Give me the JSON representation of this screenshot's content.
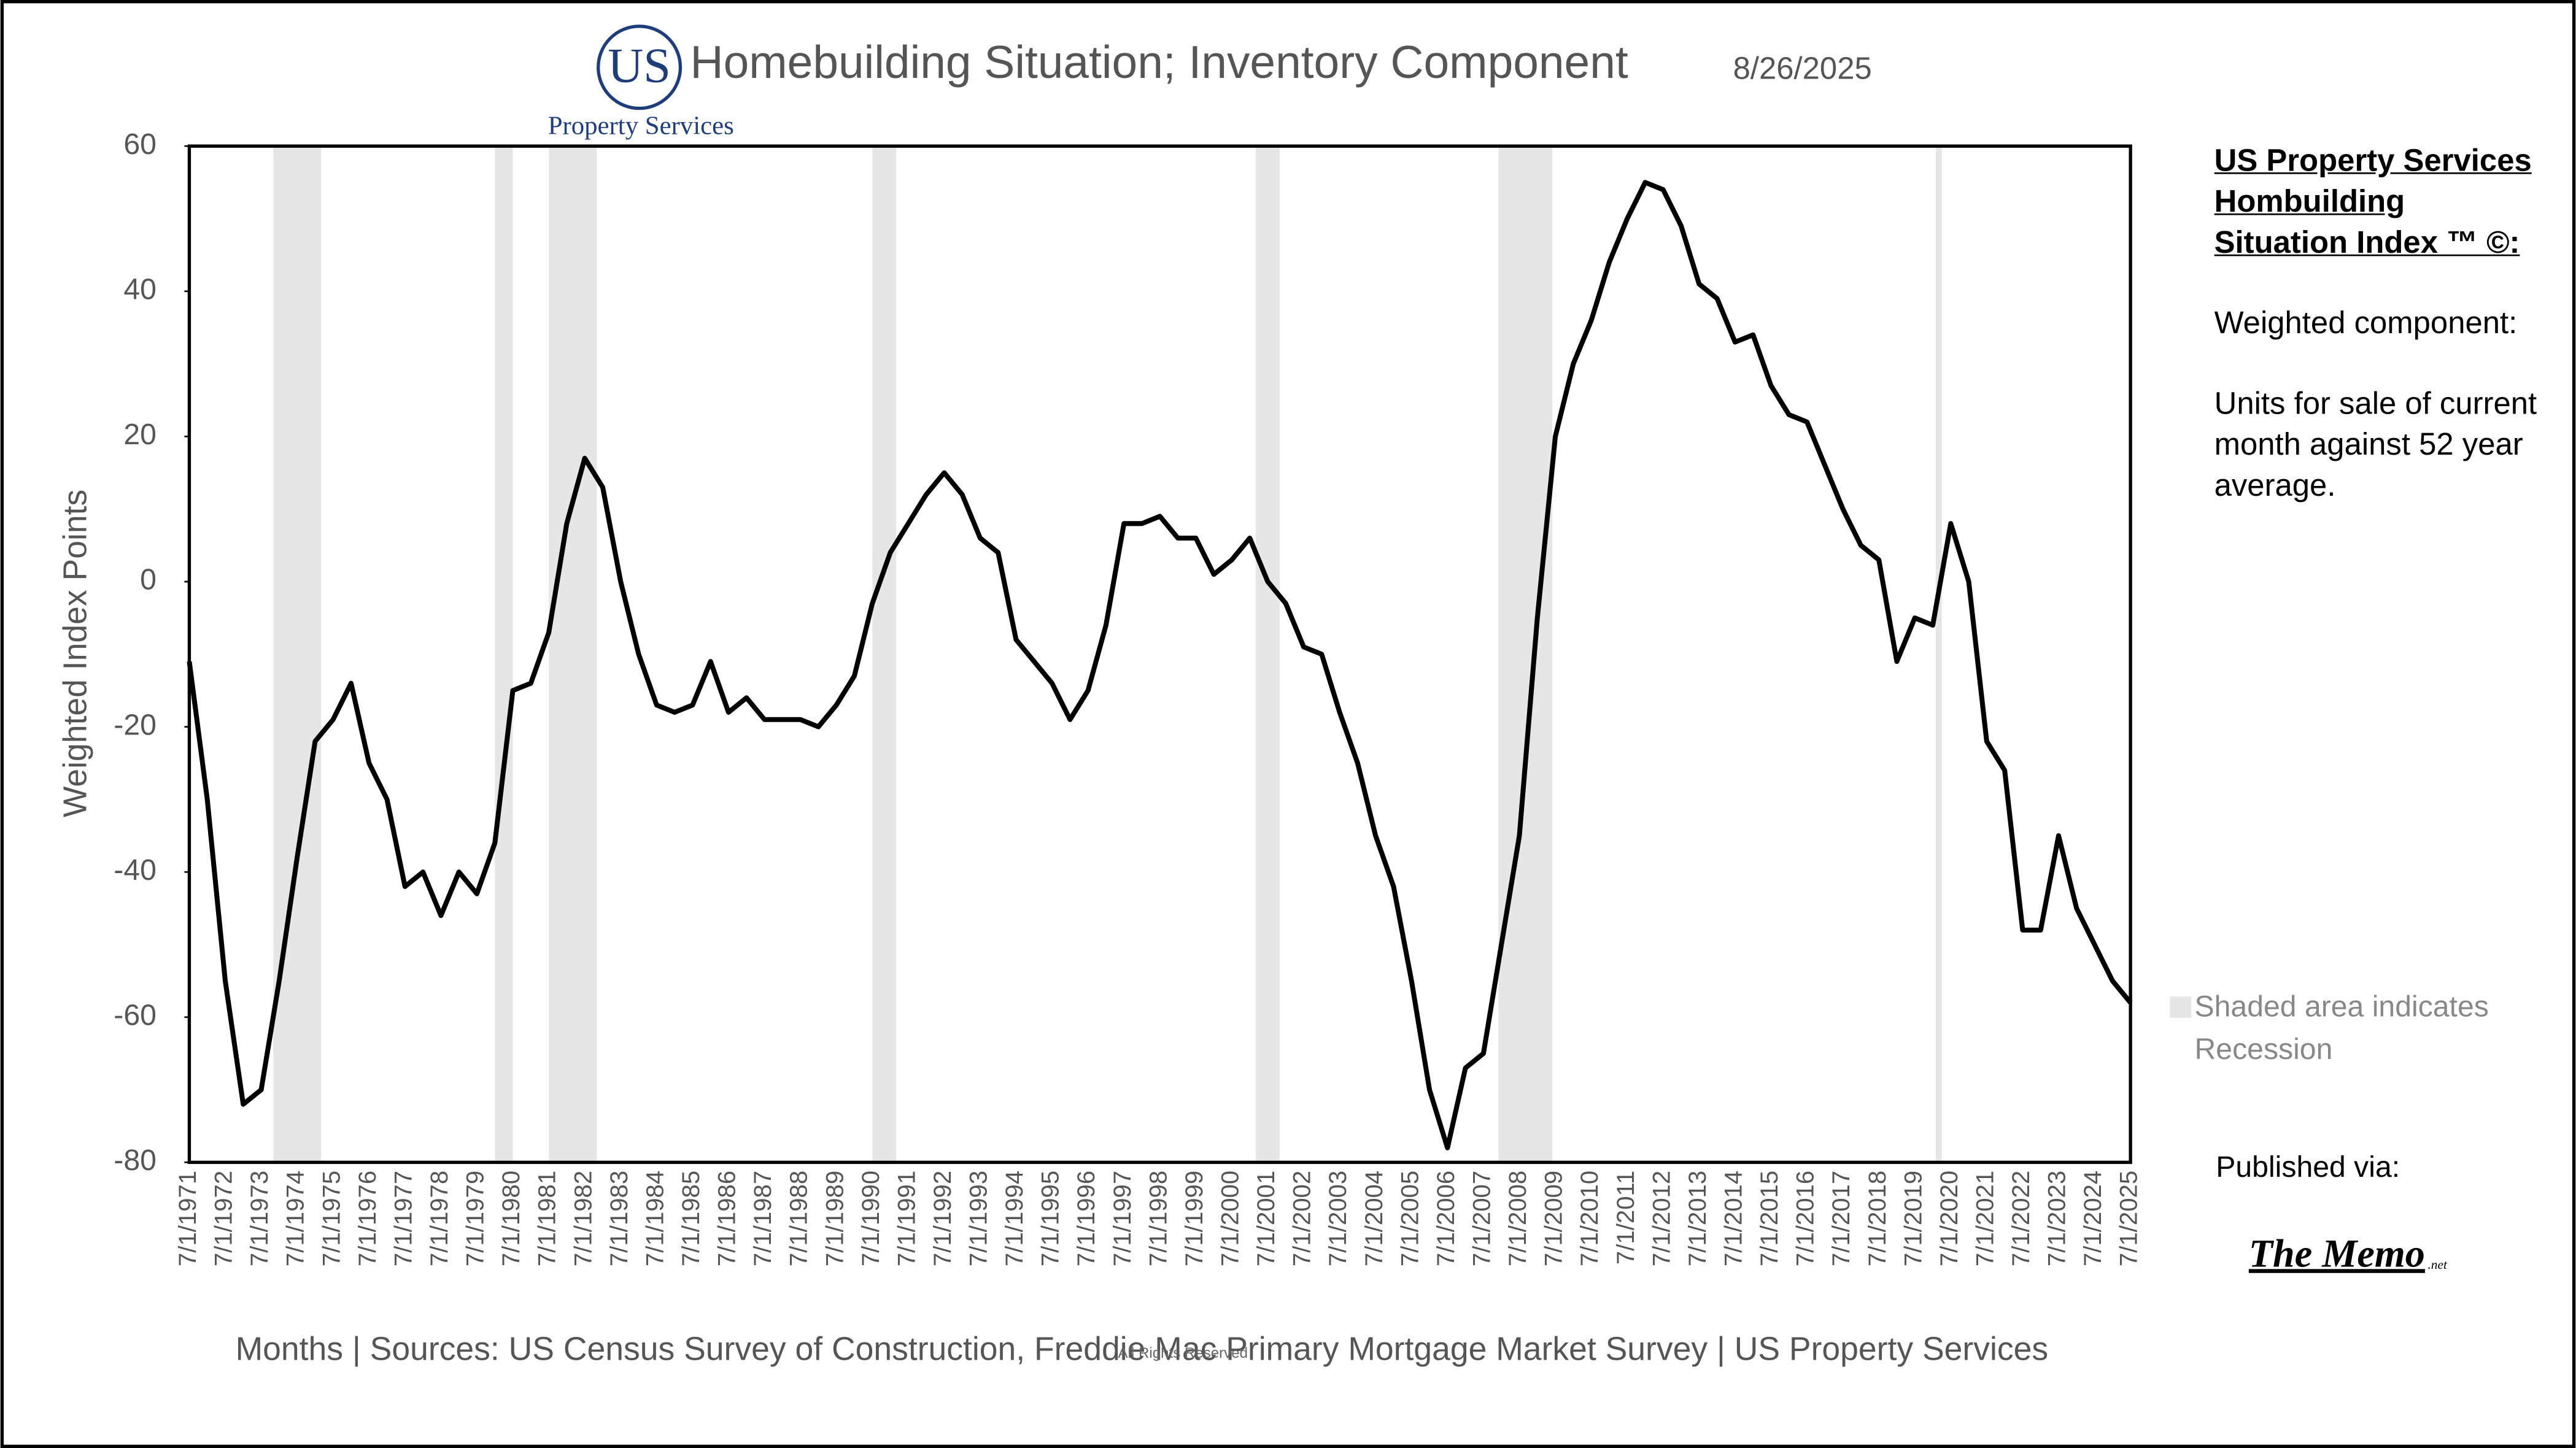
{
  "chart_data": {
    "type": "line",
    "title": "Homebuilding Situation; Inventory Component",
    "date": "8/26/2025",
    "logo": {
      "mark": "US",
      "text": "Property Services"
    },
    "y_label": "Weighted Index Points",
    "x_label": "Months | Sources: US Census Survey of Construction, Freddie Mac Primary Mortgage Market Survey | US Property Services",
    "rights": "All Rights Reserved",
    "side": {
      "heading": "US Property Services Hombuilding Situation Index ™ ©:",
      "component": "Weighted component:",
      "description": "Units for sale of current month against 52 year average.",
      "legend": "Shaded area indicates Recession",
      "published": "Published via:",
      "publisher": "The Memo",
      "publisher_suffix": ".net"
    },
    "categories": [
      "7/1/1971",
      null,
      "7/1/1972",
      null,
      "7/1/1973",
      null,
      "7/1/1974",
      null,
      "7/1/1975",
      null,
      "7/1/1976",
      null,
      "7/1/1977",
      null,
      "7/1/1978",
      null,
      "7/1/1979",
      null,
      "7/1/1980",
      null,
      "7/1/1981",
      null,
      "7/1/1982",
      null,
      "7/1/1983",
      null,
      "7/1/1984",
      null,
      "7/1/1985",
      null,
      "7/1/1986",
      null,
      "7/1/1987",
      null,
      "7/1/1988",
      null,
      "7/1/1989",
      null,
      "7/1/1990",
      null,
      "7/1/1991",
      null,
      "7/1/1992",
      null,
      "7/1/1993",
      null,
      "7/1/1994",
      null,
      "7/1/1995",
      null,
      "7/1/1996",
      null,
      "7/1/1997",
      null,
      "7/1/1998",
      null,
      "7/1/1999",
      null,
      "7/1/2000",
      null,
      "7/1/2001",
      null,
      "7/1/2002",
      null,
      "7/1/2003",
      null,
      "7/1/2004",
      null,
      "7/1/2005",
      null,
      "7/1/2006",
      null,
      "7/1/2007",
      null,
      "7/1/2008",
      null,
      "7/1/2009",
      null,
      "7/1/2010",
      null,
      "7/1/2011",
      null,
      "7/1/2012",
      null,
      "7/1/2013",
      null,
      "7/1/2014",
      null,
      "7/1/2015",
      null,
      "7/1/2016",
      null,
      "7/1/2017",
      null,
      "7/1/2018",
      null,
      "7/1/2019",
      null,
      "7/1/2020",
      null,
      "7/1/2021",
      null,
      "7/1/2022",
      null,
      "7/1/2023",
      null,
      "7/1/2024",
      null,
      "7/1/2025"
    ],
    "series": [
      {
        "name": "Inventory Component",
        "color": "#000000",
        "values": [
          -11,
          -30,
          -55,
          -72,
          -70,
          -55,
          -38,
          -22,
          -19,
          -14,
          -25,
          -30,
          -42,
          -40,
          -46,
          -40,
          -43,
          -36,
          -15,
          -14,
          -7,
          8,
          17,
          13,
          0,
          -10,
          -17,
          -18,
          -17,
          -11,
          -18,
          -16,
          -19,
          -19,
          -19,
          -20,
          -17,
          -13,
          -3,
          4,
          8,
          12,
          15,
          12,
          6,
          4,
          -8,
          -11,
          -14,
          -19,
          -15,
          -6,
          8,
          8,
          9,
          6,
          6,
          1,
          3,
          6,
          0,
          -3,
          -9,
          -10,
          -18,
          -25,
          -35,
          -42,
          -55,
          -70,
          -78,
          -67,
          -65,
          -50,
          -35,
          -5,
          20,
          30,
          36,
          44,
          50,
          55,
          54,
          49,
          41,
          39,
          33,
          34,
          27,
          23,
          22,
          16,
          10,
          5,
          3,
          -11,
          -5,
          -6,
          8,
          0,
          -22,
          -26,
          -48,
          -48,
          -35,
          -45,
          -50,
          -55,
          -58
        ]
      }
    ],
    "recessions": [
      {
        "start": "11/1/1973",
        "end": "3/1/1975"
      },
      {
        "start": "1/1/1980",
        "end": "7/1/1980"
      },
      {
        "start": "7/1/1981",
        "end": "11/1/1982"
      },
      {
        "start": "7/1/1990",
        "end": "3/1/1991"
      },
      {
        "start": "3/1/2001",
        "end": "11/1/2001"
      },
      {
        "start": "12/1/2007",
        "end": "6/1/2009"
      },
      {
        "start": "2/1/2020",
        "end": "4/1/2020"
      }
    ],
    "recession_color": "#e6e6e6",
    "ylim": [
      -80,
      60
    ],
    "yticks": [
      -80,
      -60,
      -40,
      -20,
      0,
      20,
      40,
      60
    ],
    "grid": false
  }
}
